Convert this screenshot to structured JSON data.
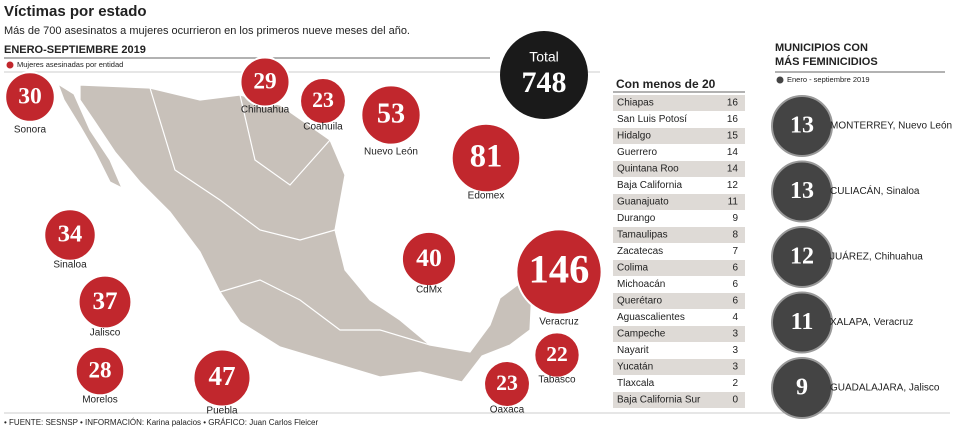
{
  "header": {
    "title": "Víctimas por estado",
    "subtitle": "Más de 700 asesinatos a mujeres ocurrieron en los primeros nueve meses del año."
  },
  "map": {
    "heading": "ENERO-SEPTIEMBRE 2019",
    "legend": "Mujeres asesinadas por entidad",
    "states": [
      {
        "name": "Sonora",
        "value": 30
      },
      {
        "name": "Chihuahua",
        "value": 29
      },
      {
        "name": "Coahuila",
        "value": 23
      },
      {
        "name": "Nuevo León",
        "value": 53
      },
      {
        "name": "Edomex",
        "value": 81
      },
      {
        "name": "Sinaloa",
        "value": 34
      },
      {
        "name": "CdMx",
        "value": 40
      },
      {
        "name": "Veracruz",
        "value": 146
      },
      {
        "name": "Jalisco",
        "value": 37
      },
      {
        "name": "Tabasco",
        "value": 22
      },
      {
        "name": "Morelos",
        "value": 28
      },
      {
        "name": "Puebla",
        "value": 47
      },
      {
        "name": "Oaxaca",
        "value": 23
      }
    ]
  },
  "total": {
    "label": "Total",
    "value": 748
  },
  "table": {
    "title": "Con menos de 20",
    "rows": [
      [
        "Chiapas",
        16
      ],
      [
        "San Luis Potosí",
        16
      ],
      [
        "Hidalgo",
        15
      ],
      [
        "Guerrero",
        14
      ],
      [
        "Quintana Roo",
        14
      ],
      [
        "Baja California",
        12
      ],
      [
        "Guanajuato",
        11
      ],
      [
        "Durango",
        9
      ],
      [
        "Tamaulipas",
        8
      ],
      [
        "Zacatecas",
        7
      ],
      [
        "Colima",
        6
      ],
      [
        "Michoacán",
        6
      ],
      [
        "Querétaro",
        6
      ],
      [
        "Aguascalientes",
        4
      ],
      [
        "Campeche",
        3
      ],
      [
        "Nayarit",
        3
      ],
      [
        "Yucatán",
        3
      ],
      [
        "Tlaxcala",
        2
      ],
      [
        "Baja California Sur",
        0
      ]
    ]
  },
  "municipalities": {
    "title": [
      "MUNICIPIOS CON",
      "MÁS FEMINICIDIOS"
    ],
    "legend": "Enero - septiembre 2019",
    "items": [
      {
        "value": 13,
        "name": "MONTERREY, Nuevo León"
      },
      {
        "value": 13,
        "name": "CULIACÁN, Sinaloa"
      },
      {
        "value": 12,
        "name": "JUÁREZ, Chihuahua"
      },
      {
        "value": 11,
        "name": "XALAPA, Veracruz"
      },
      {
        "value": 9,
        "name": "GUADALAJARA, Jalisco"
      }
    ]
  },
  "footer": "• FUENTE: SESNSP • INFORMACIÓN: Karina palacios • GRÁFICO: Juan Carlos Fleicer"
}
